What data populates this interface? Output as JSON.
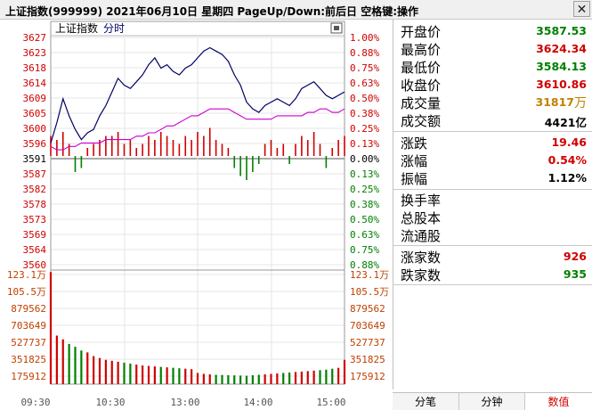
{
  "title": "上证指数(999999)  2021年06月10日 星期四 PageUp/Down:前后日 空格键:操作",
  "close_glyph": "✕",
  "chart_header": {
    "name": "上证指数",
    "mode": "分时"
  },
  "colors": {
    "up": "#d00000",
    "down": "#008000",
    "price": "#000066",
    "avg": "#cc00cc",
    "axis_left": "#d00000",
    "vol_label": "#c04000",
    "grid": "#e6e6e6"
  },
  "price_axis": {
    "left": [
      "3627",
      "3623",
      "3618",
      "3614",
      "3609",
      "3605",
      "3600",
      "3596",
      "3591",
      "3587",
      "3582",
      "3578",
      "3573",
      "3569",
      "3564",
      "3560"
    ],
    "right": [
      "1.00%",
      "0.88%",
      "0.75%",
      "0.63%",
      "0.50%",
      "0.38%",
      "0.25%",
      "0.13%",
      "0.00%",
      "0.13%",
      "0.25%",
      "0.38%",
      "0.50%",
      "0.63%",
      "0.75%",
      "0.88%"
    ]
  },
  "volume_axis": [
    "123.1万",
    "105.5万",
    "879562",
    "703649",
    "527737",
    "351825",
    "175912"
  ],
  "time_axis": [
    "09:30",
    "10:30",
    "13:00",
    "14:00",
    "15:00"
  ],
  "chart_data": {
    "type": "line",
    "title": "",
    "prev_close": 3591.4,
    "ylim": [
      3560,
      3627
    ],
    "volume_max": 1231000,
    "series": [
      {
        "name": "",
        "values": [
          3596,
          3602,
          3609,
          3604,
          3600,
          3597,
          3599,
          3600,
          3604,
          3607,
          3611,
          3615,
          3613,
          3612,
          3614,
          3616,
          3619,
          3621,
          3618,
          3619,
          3617,
          3616,
          3618,
          3619,
          3621,
          3623,
          3624,
          3623,
          3622,
          3620,
          3616,
          3613,
          3608,
          3606,
          3605,
          3607,
          3608,
          3609,
          3608,
          3607,
          3609,
          3612,
          3613,
          3614,
          3612,
          3610,
          3609,
          3610,
          3611
        ]
      },
      {
        "name": "",
        "values": [
          3595,
          3594,
          3594,
          3595,
          3595,
          3596,
          3596,
          3596,
          3596,
          3597,
          3597,
          3597,
          3597,
          3597,
          3598,
          3598,
          3599,
          3599,
          3600,
          3601,
          3601,
          3602,
          3603,
          3604,
          3604,
          3605,
          3606,
          3606,
          3606,
          3606,
          3605,
          3604,
          3603,
          3603,
          3603,
          3603,
          3603,
          3604,
          3604,
          3604,
          3604,
          3604,
          3605,
          3605,
          3606,
          3606,
          3605,
          3605,
          3606
        ]
      }
    ],
    "breadth": [
      5,
      4,
      6,
      3,
      -4,
      -3,
      2,
      3,
      4,
      5,
      5,
      6,
      3,
      4,
      2,
      3,
      5,
      4,
      6,
      5,
      4,
      3,
      5,
      4,
      6,
      5,
      7,
      4,
      3,
      2,
      -3,
      -5,
      -6,
      -4,
      -2,
      3,
      4,
      2,
      3,
      -2,
      3,
      5,
      4,
      6,
      3,
      -3,
      2,
      4,
      5
    ],
    "volume": [
      1200000,
      520000,
      480000,
      430000,
      400000,
      360000,
      340000,
      300000,
      280000,
      260000,
      250000,
      240000,
      230000,
      220000,
      210000,
      200000,
      195000,
      190000,
      185000,
      180000,
      175000,
      170000,
      165000,
      160000,
      120000,
      110000,
      105000,
      100000,
      98000,
      96000,
      94000,
      92000,
      90000,
      95000,
      100000,
      105000,
      110000,
      115000,
      120000,
      125000,
      130000,
      135000,
      140000,
      145000,
      150000,
      155000,
      165000,
      175000,
      260000
    ]
  },
  "stats": {
    "open_label": "开盘价",
    "open": "3587.53",
    "high_label": "最高价",
    "high": "3624.34",
    "low_label": "最低价",
    "low": "3584.13",
    "close_label": "收盘价",
    "close": "3610.86",
    "vol_label": "成交量",
    "vol": "31817",
    "vol_unit": "万",
    "amt_label": "成交额",
    "amt": "4421亿",
    "chg_label": "涨跌",
    "chg": "19.46",
    "pct_label": "涨幅",
    "pct": "0.54%",
    "amp_label": "振幅",
    "amp": "1.12%",
    "turnover_label": "换手率",
    "shares_label": "总股本",
    "float_label": "流通股",
    "up_label": "涨家数",
    "up": "926",
    "down_label": "跌家数",
    "down": "935"
  },
  "tabs": [
    "分笔",
    "分钟",
    "数值"
  ]
}
